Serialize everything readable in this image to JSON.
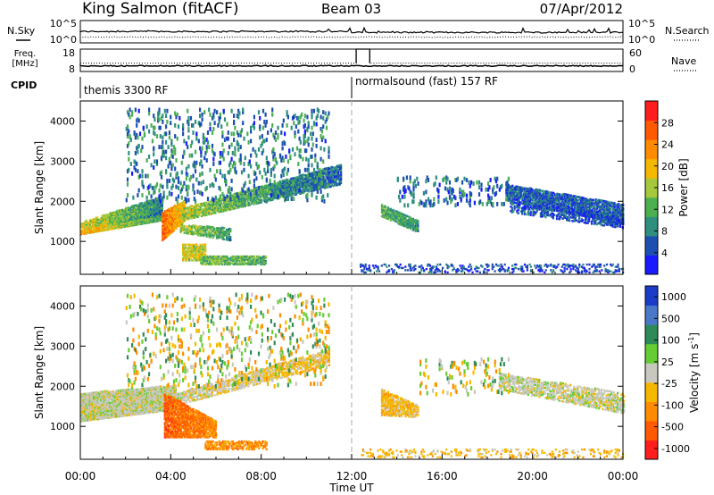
{
  "header": {
    "station": "King Salmon (fitACF)",
    "beam": "Beam 03",
    "date": "07/Apr/2012"
  },
  "noise_panel": {
    "left_label": "N.Sky",
    "right_label": "N.Search",
    "ticks": [
      "10^5",
      "10^0"
    ]
  },
  "freq_panel": {
    "left_label_1": "Freq.",
    "left_label_2": "[MHz]",
    "right_label": "Nave",
    "left_ticks": [
      "18",
      "8"
    ],
    "right_ticks": [
      "60",
      "0"
    ],
    "freq_level_mhz": 10.5,
    "nave_level": 22,
    "nave_step_level": 60,
    "nave_step_hours": [
      12.2,
      12.8
    ]
  },
  "cpid_panel": {
    "label": "CPID",
    "segments": [
      {
        "name": "themis 3300 RF",
        "start_hour": 0
      },
      {
        "name": "normalsound (fast) 157 RF",
        "start_hour": 12
      }
    ]
  },
  "chart_data": [
    {
      "type": "heatmap",
      "title": "",
      "ylabel": "Slant Range [km]",
      "xlabel": "Time UT",
      "x_range_hours": [
        0,
        24
      ],
      "ylim": [
        180,
        4500
      ],
      "y_ticks": [
        "1000",
        "2000",
        "3000",
        "4000"
      ],
      "x_ticks": [
        "00:00",
        "04:00",
        "08:00",
        "12:00",
        "16:00",
        "20:00",
        "00:00"
      ],
      "colorbar": {
        "label": "Power [dB]",
        "range": [
          0,
          32
        ],
        "ticks": [
          "4",
          "8",
          "12",
          "16",
          "20",
          "24",
          "28"
        ],
        "colors": [
          "#1a1aff",
          "#1c4fb0",
          "#2f8f7f",
          "#4caf50",
          "#a5c83c",
          "#f5b800",
          "#ff8c00",
          "#ff5a00",
          "#ff1e1e"
        ]
      },
      "bands": [
        {
          "t0": 0.0,
          "t1": 3.6,
          "r0": 1150,
          "r1": 1250,
          "r0e": 1500,
          "r1e": 1950,
          "p": 22,
          "pe": 10,
          "dens": 0.9
        },
        {
          "t0": 0.0,
          "t1": 3.6,
          "r0": 1300,
          "r1": 1450,
          "r0e": 1650,
          "r1e": 2100,
          "p": 18,
          "pe": 8,
          "dens": 0.8
        },
        {
          "t0": 3.6,
          "t1": 4.6,
          "r0": 1000,
          "r1": 1700,
          "r0e": 1500,
          "r1e": 2000,
          "p": 26,
          "pe": 18,
          "dens": 0.85
        },
        {
          "t0": 4.5,
          "t1": 11.5,
          "r0": 1500,
          "r1": 1800,
          "r0e": 2400,
          "r1e": 2900,
          "p": 16,
          "pe": 6,
          "dens": 0.7
        },
        {
          "t0": 4.4,
          "t1": 6.6,
          "r0": 1200,
          "r1": 1400,
          "r0e": 1000,
          "r1e": 1300,
          "p": 16,
          "pe": 10,
          "dens": 0.6
        },
        {
          "t0": 4.5,
          "t1": 5.5,
          "r0": 500,
          "r1": 900,
          "r0e": 500,
          "r1e": 900,
          "p": 18,
          "pe": 16,
          "dens": 0.6
        },
        {
          "t0": 5.3,
          "t1": 8.2,
          "r0": 400,
          "r1": 600,
          "r0e": 400,
          "r1e": 600,
          "p": 14,
          "pe": 12,
          "dens": 0.65
        },
        {
          "t0": 13.3,
          "t1": 14.9,
          "r0": 1600,
          "r1": 1900,
          "r0e": 1200,
          "r1e": 1500,
          "p": 12,
          "pe": 10,
          "dens": 0.7
        },
        {
          "t0": 18.8,
          "t1": 24.0,
          "r0": 2000,
          "r1": 2400,
          "r0e": 1400,
          "r1e": 1900,
          "p": 6,
          "pe": 6,
          "dens": 0.7
        },
        {
          "t0": 19.0,
          "t1": 24.0,
          "r0": 1700,
          "r1": 2000,
          "r0e": 1300,
          "r1e": 1600,
          "p": 5,
          "pe": 5,
          "dens": 0.4
        },
        {
          "t0": 12.3,
          "t1": 24.0,
          "r0": 200,
          "r1": 400,
          "r0e": 200,
          "r1e": 400,
          "p": 5,
          "pe": 5,
          "dens": 0.2
        }
      ],
      "scatter_regions": [
        {
          "t0": 2.0,
          "t1": 11.0,
          "r0": 2000,
          "r1": 4300,
          "p": 8,
          "dens": 0.05
        },
        {
          "t0": 14.0,
          "t1": 19.0,
          "r0": 1900,
          "r1": 2600,
          "p": 7,
          "dens": 0.06
        }
      ]
    },
    {
      "type": "heatmap",
      "title": "",
      "ylabel": "Slant Range [km]",
      "xlabel": "Time UT",
      "x_range_hours": [
        0,
        24
      ],
      "ylim": [
        180,
        4500
      ],
      "y_ticks": [
        "1000",
        "2000",
        "3000",
        "4000"
      ],
      "x_ticks": [
        "00:00",
        "04:00",
        "08:00",
        "12:00",
        "16:00",
        "20:00",
        "00:00"
      ],
      "colorbar": {
        "label": "Velocity [m s^-1]",
        "ticks": [
          "1000",
          "500",
          "100",
          "25",
          "-25",
          "-100",
          "-500",
          "-1000"
        ],
        "colors": [
          "#1a3cc8",
          "#4a78c8",
          "#2e8b57",
          "#66cc33",
          "#c8c8c0",
          "#f5b800",
          "#ff8c00",
          "#ff5a00",
          "#ff1e1e"
        ]
      },
      "bands": [
        {
          "t0": 0.0,
          "t1": 4.2,
          "r0": 1100,
          "r1": 1800,
          "r0e": 1400,
          "r1e": 2000,
          "v": 4,
          "ve": 4,
          "dens": 0.9
        },
        {
          "t0": 4.2,
          "t1": 11.0,
          "r0": 1500,
          "r1": 1800,
          "r0e": 2500,
          "r1e": 2900,
          "v": 4,
          "ve": 5,
          "dens": 0.5
        },
        {
          "t0": 3.7,
          "t1": 6.0,
          "r0": 700,
          "r1": 1800,
          "r0e": 700,
          "r1e": 1100,
          "v": 7,
          "ve": 6,
          "dens": 0.7
        },
        {
          "t0": 5.5,
          "t1": 8.2,
          "r0": 400,
          "r1": 600,
          "r0e": 400,
          "r1e": 600,
          "v": 6,
          "ve": 6,
          "dens": 0.5
        },
        {
          "t0": 13.3,
          "t1": 14.9,
          "r0": 1250,
          "r1": 1900,
          "r0e": 1200,
          "r1e": 1500,
          "v": 5,
          "ve": 5,
          "dens": 0.6
        },
        {
          "t0": 18.5,
          "t1": 24.0,
          "r0": 1900,
          "r1": 2300,
          "r0e": 1300,
          "r1e": 1800,
          "v": 4,
          "ve": 4,
          "dens": 0.5
        },
        {
          "t0": 12.3,
          "t1": 24.0,
          "r0": 200,
          "r1": 400,
          "r0e": 200,
          "r1e": 400,
          "v": 5,
          "ve": 5,
          "dens": 0.15
        }
      ],
      "scatter_regions": [
        {
          "t0": 2.0,
          "t1": 11.0,
          "r0": 2000,
          "r1": 4300,
          "v": 4,
          "dens": 0.04
        },
        {
          "t0": 15.0,
          "t1": 19.0,
          "r0": 1800,
          "r1": 2700,
          "v": 4,
          "dens": 0.04
        }
      ]
    }
  ]
}
